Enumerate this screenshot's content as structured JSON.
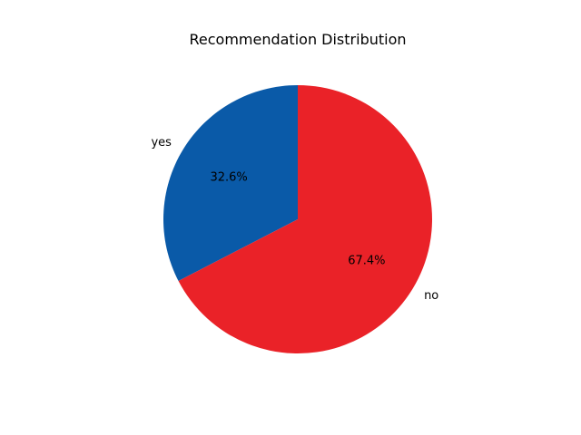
{
  "chart_data": {
    "type": "pie",
    "title": "Recommendation Distribution",
    "labels": [
      "yes",
      "no"
    ],
    "values": [
      32.6,
      67.4
    ],
    "percent_labels": [
      "32.6%",
      "67.4%"
    ],
    "colors": [
      "#0a5aa8",
      "#ea2228"
    ],
    "start_angle_deg": 90,
    "direction": "counterclockwise"
  }
}
